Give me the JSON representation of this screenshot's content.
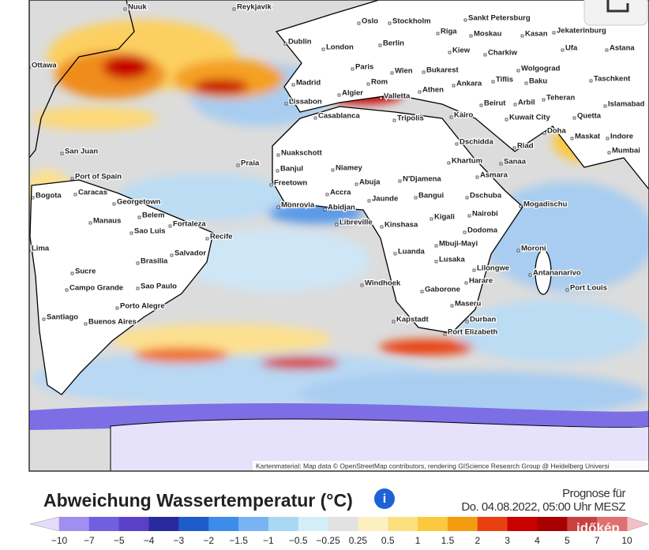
{
  "map": {
    "cities": [
      "Nuuk",
      "Reykjavik",
      "Oslo",
      "Stockholm",
      "Sankt Petersburg",
      "Riga",
      "Moskau",
      "Kasan",
      "Jekaterinburg",
      "Dublin",
      "London",
      "Berlin",
      "Kiew",
      "Charkiw",
      "Ufa",
      "Astana",
      "Ottawa",
      "Paris",
      "Wien",
      "Bukarest",
      "Wolgograd",
      "Tiflis",
      "Baku",
      "Taschkent",
      "Madrid",
      "Rom",
      "Ankara",
      "Algier",
      "Valletta",
      "Athen",
      "Teheran",
      "Lissabon",
      "Beirut",
      "Arbil",
      "Islamabad",
      "Casablanca",
      "Tripolis",
      "Kairo",
      "Kuwait City",
      "Quetta",
      "Doha",
      "Maskat",
      "Indore",
      "Dschidda",
      "Riad",
      "Mumbai",
      "Nuakschott",
      "San Juan",
      "Khartum",
      "Sanaa",
      "Praia",
      "Banjul",
      "Niamey",
      "Port of Spain",
      "Asmara",
      "Abuja",
      "N'Djamena",
      "Freetown",
      "Caracas",
      "Georgetown",
      "Accra",
      "Jaunde",
      "Bangui",
      "Dschuba",
      "Bogota",
      "Monrovia",
      "Abidjan",
      "Belem",
      "Fortaleza",
      "Mogadischu",
      "Manaus",
      "Sao Luis",
      "Libreville",
      "Kinshasa",
      "Kigali",
      "Nairobi",
      "Dodoma",
      "Recife",
      "Luanda",
      "Lima",
      "Salvador",
      "Mbuji-Mayi",
      "Lusaka",
      "Moroni",
      "Lilongwe",
      "Brasilia",
      "Antananarivo",
      "Sucre",
      "Harare",
      "Campo Grande",
      "Sao Paulo",
      "Windhoek",
      "Port Louis",
      "Gaborone",
      "Porto Alegre",
      "Maseru",
      "Santiago",
      "Buenos Aires",
      "Kapstadt",
      "Durban",
      "Port Elizabeth"
    ],
    "attribution": "Kartenmaterial: Map data © OpenStreetMap contributors, rendering GIScience Research Group @ Heidelberg Universi"
  },
  "legend": {
    "title": "Abweichung Wassertemperatur (°C)",
    "forecast_label": "Prognose für",
    "forecast_time": "Do. 04.08.2022, 05:00 Uhr MESZ",
    "ticks": [
      "−10",
      "−7",
      "−5",
      "−4",
      "−3",
      "−2",
      "−1.5",
      "−1",
      "−0.5",
      "−0.25",
      "0.25",
      "0.5",
      "1",
      "1.5",
      "2",
      "3",
      "4",
      "5",
      "7",
      "10"
    ]
  },
  "logo": "időkép"
}
